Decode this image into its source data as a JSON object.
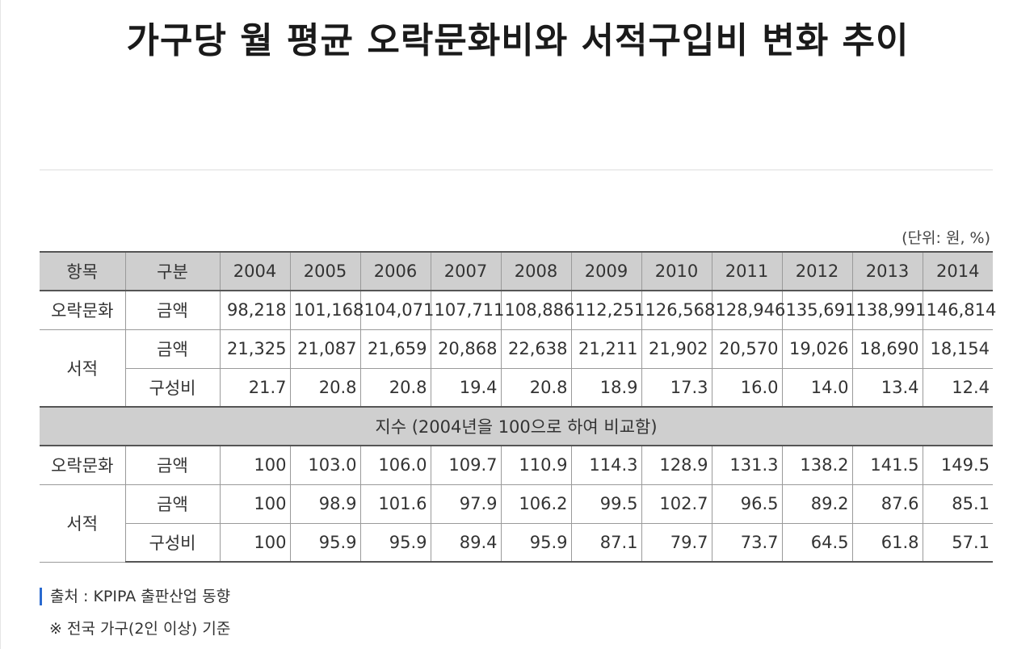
{
  "title": "가구당 월 평균 오락문화비와 서적구입비 변화 추이",
  "unit": "(단위: 원, %)",
  "table": {
    "headers": [
      "항목",
      "구분",
      "2004",
      "2005",
      "2006",
      "2007",
      "2008",
      "2009",
      "2010",
      "2011",
      "2012",
      "2013",
      "2014"
    ],
    "amounts": {
      "rows": [
        {
          "item": "오락문화",
          "division": "금액",
          "values": [
            "98,218",
            "101,168",
            "104,071",
            "107,711",
            "108,886",
            "112,251",
            "126,568",
            "128,946",
            "135,691",
            "138,991",
            "146,814"
          ]
        },
        {
          "item": "서적",
          "division": "금액",
          "values": [
            "21,325",
            "21,087",
            "21,659",
            "20,868",
            "22,638",
            "21,211",
            "21,902",
            "20,570",
            "19,026",
            "18,690",
            "18,154"
          ]
        },
        {
          "item": "",
          "division": "구성비",
          "values": [
            "21.7",
            "20.8",
            "20.8",
            "19.4",
            "20.8",
            "18.9",
            "17.3",
            "16.0",
            "14.0",
            "13.4",
            "12.4"
          ]
        }
      ]
    },
    "index_title": "지수 (2004년을 100으로 하여 비교함)",
    "index": {
      "rows": [
        {
          "item": "오락문화",
          "division": "금액",
          "values": [
            "100",
            "103.0",
            "106.0",
            "109.7",
            "110.9",
            "114.3",
            "128.9",
            "131.3",
            "138.2",
            "141.5",
            "149.5"
          ]
        },
        {
          "item": "서적",
          "division": "금액",
          "values": [
            "100",
            "98.9",
            "101.6",
            "97.9",
            "106.2",
            "99.5",
            "102.7",
            "96.5",
            "89.2",
            "87.6",
            "85.1"
          ]
        },
        {
          "item": "",
          "division": "구성비",
          "values": [
            "100",
            "95.9",
            "95.9",
            "89.4",
            "95.9",
            "87.1",
            "79.7",
            "73.7",
            "64.5",
            "61.8",
            "57.1"
          ]
        }
      ]
    }
  },
  "source": "출처 : KPIPA 출판산업 동향",
  "note": "※ 전국 가구(2인 이상) 기준",
  "colors": {
    "header_bg": "#cfcfcf",
    "accent_bar": "#2a6ad0"
  }
}
